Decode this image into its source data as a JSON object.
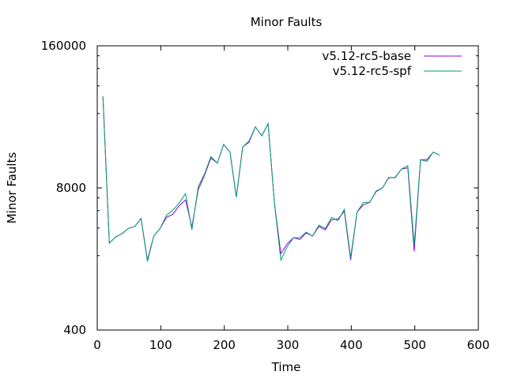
{
  "chart_data": {
    "type": "line",
    "title": "Minor Faults",
    "xlabel": "Time",
    "ylabel": "Minor Faults",
    "xlim": [
      0,
      600
    ],
    "ylim": [
      400,
      160000
    ],
    "yscale": "log",
    "xticks": [
      0,
      100,
      200,
      300,
      400,
      500,
      600
    ],
    "xtick_labels": [
      "0",
      "100",
      "200",
      "300",
      "400",
      "500",
      "600"
    ],
    "yticks": [
      400,
      8000,
      160000
    ],
    "ytick_labels": [
      "400",
      "8000",
      "160000"
    ],
    "grid": false,
    "legend": "top-right",
    "series": [
      {
        "name": "v5.12-rc5-base",
        "color": "#9400d3",
        "x": [
          9,
          19,
          29,
          39,
          49,
          59,
          69,
          79,
          89,
          99,
          109,
          119,
          129,
          139,
          149,
          159,
          169,
          179,
          189,
          199,
          209,
          219,
          229,
          239,
          249,
          259,
          269,
          279,
          289,
          299,
          309,
          319,
          329,
          339,
          349,
          359,
          369,
          379,
          389,
          399,
          409,
          419,
          429,
          439,
          449,
          459,
          469,
          479,
          489,
          499,
          509,
          519,
          529,
          539
        ],
        "y": [
          55000,
          2500,
          2850,
          3050,
          3400,
          3550,
          4200,
          1750,
          2900,
          3400,
          4300,
          4600,
          5500,
          6200,
          3500,
          7700,
          10500,
          15000,
          13500,
          20000,
          17000,
          6600,
          19000,
          21000,
          29000,
          24000,
          31000,
          5800,
          2000,
          2450,
          2800,
          2700,
          3100,
          2900,
          3550,
          3300,
          4100,
          4150,
          4900,
          1750,
          4800,
          5600,
          5900,
          7400,
          8000,
          9900,
          10000,
          11900,
          12200,
          2100,
          14500,
          14500,
          17000,
          16000
        ]
      },
      {
        "name": "v5.12-rc5-spf",
        "color": "#009e73",
        "x": [
          9,
          19,
          29,
          39,
          49,
          59,
          69,
          79,
          89,
          99,
          109,
          119,
          129,
          139,
          149,
          159,
          169,
          179,
          189,
          199,
          209,
          219,
          229,
          239,
          249,
          259,
          269,
          279,
          289,
          299,
          309,
          319,
          329,
          339,
          349,
          359,
          369,
          379,
          389,
          399,
          409,
          419,
          429,
          439,
          449,
          459,
          469,
          479,
          489,
          499,
          509,
          519,
          529,
          539
        ],
        "y": [
          55000,
          2500,
          2850,
          3050,
          3400,
          3550,
          4200,
          1700,
          2900,
          3400,
          4500,
          5000,
          5800,
          7100,
          3300,
          8200,
          10800,
          15500,
          13500,
          20000,
          17000,
          6600,
          19000,
          21500,
          29000,
          24000,
          31000,
          5800,
          1750,
          2300,
          2800,
          2800,
          3150,
          2900,
          3650,
          3400,
          4300,
          4000,
          5100,
          1850,
          4800,
          5900,
          5900,
          7500,
          8000,
          10000,
          9900,
          11900,
          12800,
          2400,
          14500,
          14000,
          17000,
          16000
        ]
      }
    ]
  }
}
